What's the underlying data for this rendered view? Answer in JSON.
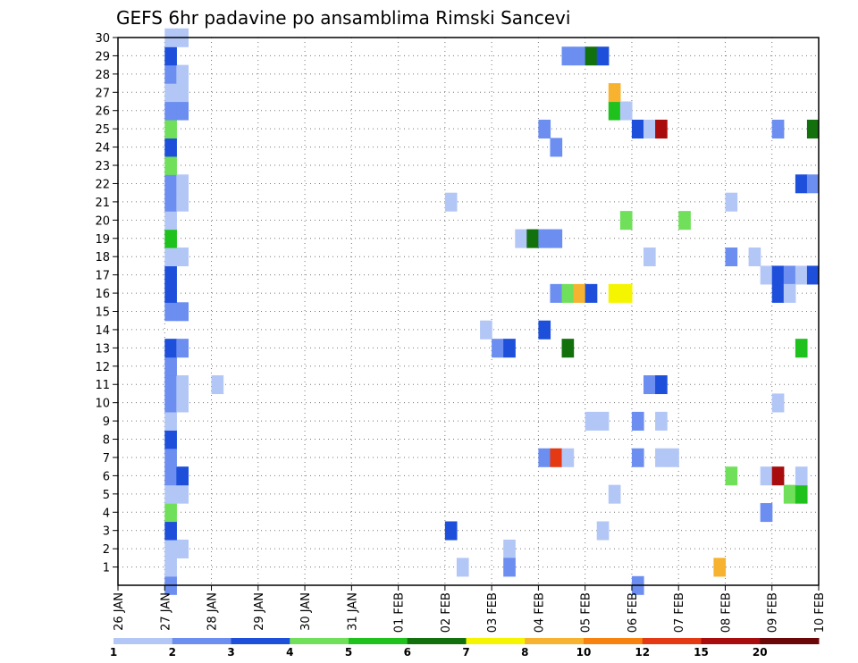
{
  "chart_data": {
    "type": "heatmap",
    "title": "GEFS 6hr padavine po ansamblima Rimski Sancevi",
    "xlabel": "",
    "ylabel": "",
    "x_ticks": [
      "26 JAN",
      "27 JAN",
      "28 JAN",
      "29 JAN",
      "30 JAN",
      "31 JAN",
      "01 FEB",
      "02 FEB",
      "03 FEB",
      "04 FEB",
      "05 FEB",
      "06 FEB",
      "07 FEB",
      "08 FEB",
      "09 FEB",
      "10 FEB"
    ],
    "y_ticks": [
      1,
      2,
      3,
      4,
      5,
      6,
      7,
      8,
      9,
      10,
      11,
      12,
      13,
      14,
      15,
      16,
      17,
      18,
      19,
      20,
      21,
      22,
      23,
      24,
      25,
      26,
      27,
      28,
      29,
      30
    ],
    "xlim": [
      "26 JAN",
      "10 FEB"
    ],
    "ylim": [
      0,
      30
    ],
    "grid": true,
    "legend_position": "bottom",
    "color_scale": {
      "labels": [
        "1",
        "2",
        "3",
        "4",
        "5",
        "6",
        "7",
        "8",
        "10",
        "12",
        "15",
        "20"
      ],
      "colors": [
        "#b3c7f7",
        "#6b8ef0",
        "#1d4fdb",
        "#70e05a",
        "#1fc11c",
        "#12700d",
        "#f5f500",
        "#f7b22f",
        "#f7820e",
        "#e43913",
        "#a80c0c",
        "#6b0707"
      ]
    },
    "cells": [
      {
        "day": 1.0,
        "row": 0,
        "level": 2
      },
      {
        "day": 1.0,
        "row": 1,
        "level": 1
      },
      {
        "day": 1.0,
        "row": 2,
        "level": 1
      },
      {
        "day": 1.25,
        "row": 2,
        "level": 1
      },
      {
        "day": 1.0,
        "row": 3,
        "level": 3
      },
      {
        "day": 1.0,
        "row": 4,
        "level": 4
      },
      {
        "day": 1.0,
        "row": 5,
        "level": 1
      },
      {
        "day": 1.25,
        "row": 5,
        "level": 1
      },
      {
        "day": 1.0,
        "row": 6,
        "level": 2
      },
      {
        "day": 1.25,
        "row": 6,
        "level": 3
      },
      {
        "day": 1.0,
        "row": 7,
        "level": 2
      },
      {
        "day": 1.0,
        "row": 8,
        "level": 3
      },
      {
        "day": 1.0,
        "row": 9,
        "level": 1
      },
      {
        "day": 1.0,
        "row": 10,
        "level": 2
      },
      {
        "day": 1.25,
        "row": 10,
        "level": 1
      },
      {
        "day": 1.0,
        "row": 11,
        "level": 2
      },
      {
        "day": 1.25,
        "row": 11,
        "level": 1
      },
      {
        "day": 1.0,
        "row": 12,
        "level": 2
      },
      {
        "day": 1.0,
        "row": 13,
        "level": 3
      },
      {
        "day": 1.25,
        "row": 13,
        "level": 2
      },
      {
        "day": 1.0,
        "row": 15,
        "level": 2
      },
      {
        "day": 1.25,
        "row": 15,
        "level": 2
      },
      {
        "day": 1.0,
        "row": 16,
        "level": 3
      },
      {
        "day": 1.0,
        "row": 17,
        "level": 3
      },
      {
        "day": 1.0,
        "row": 18,
        "level": 1
      },
      {
        "day": 1.25,
        "row": 18,
        "level": 1
      },
      {
        "day": 1.0,
        "row": 19,
        "level": 5
      },
      {
        "day": 1.0,
        "row": 20,
        "level": 1
      },
      {
        "day": 1.0,
        "row": 21,
        "level": 2
      },
      {
        "day": 1.25,
        "row": 21,
        "level": 1
      },
      {
        "day": 1.0,
        "row": 22,
        "level": 2
      },
      {
        "day": 1.25,
        "row": 22,
        "level": 1
      },
      {
        "day": 1.0,
        "row": 23,
        "level": 4
      },
      {
        "day": 1.0,
        "row": 24,
        "level": 3
      },
      {
        "day": 1.0,
        "row": 25,
        "level": 4
      },
      {
        "day": 1.0,
        "row": 26,
        "level": 2
      },
      {
        "day": 1.25,
        "row": 26,
        "level": 2
      },
      {
        "day": 1.0,
        "row": 27,
        "level": 1
      },
      {
        "day": 1.25,
        "row": 27,
        "level": 1
      },
      {
        "day": 1.0,
        "row": 28,
        "level": 2
      },
      {
        "day": 1.25,
        "row": 28,
        "level": 1
      },
      {
        "day": 1.0,
        "row": 29,
        "level": 3
      },
      {
        "day": 1.0,
        "row": 30,
        "level": 1
      },
      {
        "day": 1.25,
        "row": 30,
        "level": 1
      },
      {
        "day": 2.0,
        "row": 11,
        "level": 1
      },
      {
        "day": 7.0,
        "row": 3,
        "level": 3
      },
      {
        "day": 7.25,
        "row": 1,
        "level": 1
      },
      {
        "day": 7.0,
        "row": 21,
        "level": 1
      },
      {
        "day": 7.75,
        "row": 14,
        "level": 1
      },
      {
        "day": 8.0,
        "row": 13,
        "level": 2
      },
      {
        "day": 8.25,
        "row": 13,
        "level": 3
      },
      {
        "day": 8.25,
        "row": 2,
        "level": 1
      },
      {
        "day": 8.25,
        "row": 1,
        "level": 2
      },
      {
        "day": 8.5,
        "row": 19,
        "level": 1
      },
      {
        "day": 9.0,
        "row": 25,
        "level": 2
      },
      {
        "day": 9.0,
        "row": 14,
        "level": 3
      },
      {
        "day": 9.0,
        "row": 7,
        "level": 2
      },
      {
        "day": 8.75,
        "row": 19,
        "level": 6
      },
      {
        "day": 9.0,
        "row": 19,
        "level": 2
      },
      {
        "day": 9.25,
        "row": 19,
        "level": 2
      },
      {
        "day": 9.25,
        "row": 24,
        "level": 2
      },
      {
        "day": 9.25,
        "row": 16,
        "level": 2
      },
      {
        "day": 9.25,
        "row": 7,
        "level": 10
      },
      {
        "day": 9.5,
        "row": 7,
        "level": 1
      },
      {
        "day": 9.5,
        "row": 16,
        "level": 4
      },
      {
        "day": 9.75,
        "row": 16,
        "level": 8
      },
      {
        "day": 9.5,
        "row": 13,
        "level": 6
      },
      {
        "day": 9.5,
        "row": 29,
        "level": 2
      },
      {
        "day": 9.75,
        "row": 29,
        "level": 2
      },
      {
        "day": 10.0,
        "row": 29,
        "level": 6
      },
      {
        "day": 10.25,
        "row": 29,
        "level": 3
      },
      {
        "day": 10.0,
        "row": 16,
        "level": 3
      },
      {
        "day": 10.0,
        "row": 9,
        "level": 1
      },
      {
        "day": 10.25,
        "row": 9,
        "level": 1
      },
      {
        "day": 10.25,
        "row": 3,
        "level": 1
      },
      {
        "day": 10.5,
        "row": 16,
        "level": 7
      },
      {
        "day": 10.75,
        "row": 16,
        "level": 7
      },
      {
        "day": 10.5,
        "row": 26,
        "level": 5
      },
      {
        "day": 10.5,
        "row": 27,
        "level": 8
      },
      {
        "day": 10.5,
        "row": 5,
        "level": 1
      },
      {
        "day": 10.75,
        "row": 26,
        "level": 1
      },
      {
        "day": 10.75,
        "row": 20,
        "level": 4
      },
      {
        "day": 11.0,
        "row": 25,
        "level": 3
      },
      {
        "day": 11.0,
        "row": 9,
        "level": 2
      },
      {
        "day": 11.0,
        "row": 7,
        "level": 2
      },
      {
        "day": 11.0,
        "row": 0,
        "level": 2
      },
      {
        "day": 11.25,
        "row": 25,
        "level": 1
      },
      {
        "day": 11.25,
        "row": 11,
        "level": 2
      },
      {
        "day": 11.25,
        "row": 18,
        "level": 1
      },
      {
        "day": 11.5,
        "row": 25,
        "level": 11
      },
      {
        "day": 11.5,
        "row": 11,
        "level": 3
      },
      {
        "day": 11.5,
        "row": 9,
        "level": 1
      },
      {
        "day": 11.5,
        "row": 7,
        "level": 1
      },
      {
        "day": 11.75,
        "row": 7,
        "level": 1
      },
      {
        "day": 12.0,
        "row": 20,
        "level": 4
      },
      {
        "day": 12.75,
        "row": 1,
        "level": 8
      },
      {
        "day": 13.0,
        "row": 18,
        "level": 2
      },
      {
        "day": 13.0,
        "row": 21,
        "level": 1
      },
      {
        "day": 13.0,
        "row": 6,
        "level": 4
      },
      {
        "day": 13.5,
        "row": 18,
        "level": 1
      },
      {
        "day": 13.75,
        "row": 6,
        "level": 1
      },
      {
        "day": 13.75,
        "row": 17,
        "level": 1
      },
      {
        "day": 13.75,
        "row": 4,
        "level": 2
      },
      {
        "day": 14.0,
        "row": 6,
        "level": 11
      },
      {
        "day": 14.0,
        "row": 25,
        "level": 2
      },
      {
        "day": 14.0,
        "row": 17,
        "level": 3
      },
      {
        "day": 14.0,
        "row": 16,
        "level": 3
      },
      {
        "day": 14.0,
        "row": 10,
        "level": 1
      },
      {
        "day": 14.25,
        "row": 17,
        "level": 2
      },
      {
        "day": 14.25,
        "row": 16,
        "level": 1
      },
      {
        "day": 14.25,
        "row": 5,
        "level": 4
      },
      {
        "day": 14.5,
        "row": 5,
        "level": 5
      },
      {
        "day": 14.5,
        "row": 13,
        "level": 5
      },
      {
        "day": 14.5,
        "row": 6,
        "level": 1
      },
      {
        "day": 14.5,
        "row": 17,
        "level": 1
      },
      {
        "day": 14.5,
        "row": 22,
        "level": 3
      },
      {
        "day": 14.75,
        "row": 22,
        "level": 2
      },
      {
        "day": 14.75,
        "row": 17,
        "level": 3
      },
      {
        "day": 14.75,
        "row": 25,
        "level": 6
      }
    ]
  }
}
